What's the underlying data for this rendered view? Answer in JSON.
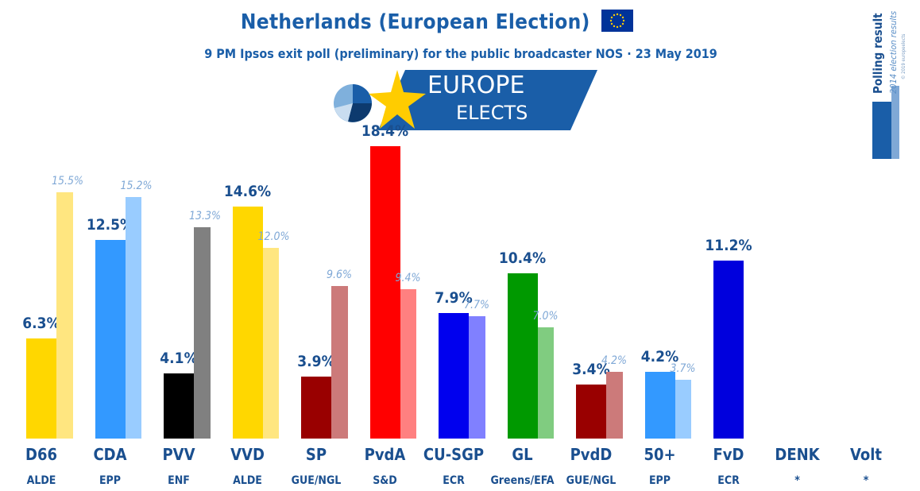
{
  "header": {
    "title": "Netherlands (European Election)",
    "subtitle": "9 PM Ipsos exit poll (preliminary) for the public broadcaster NOS · 23 May 2019"
  },
  "logo": {
    "line1": "EUROPE",
    "line2": "ELECTS"
  },
  "sidebar": {
    "label": "Polling result",
    "sublabel": "2014 election results",
    "tiny": "© 2019 europeelects"
  },
  "colors": {
    "accent": "#1a5ea8",
    "label": "#1a4f8f",
    "prev_label": "#7fa8d6"
  },
  "chart_data": {
    "type": "bar",
    "title": "Netherlands (European Election)",
    "categories": [
      "D66",
      "CDA",
      "PVV",
      "VVD",
      "SP",
      "PvdA",
      "CU-SGP",
      "GL",
      "PvdD",
      "50+",
      "FvD",
      "DENK",
      "Volt"
    ],
    "groups": [
      "ALDE",
      "EPP",
      "ENF",
      "ALDE",
      "GUE/NGL",
      "S&D",
      "ECR",
      "Greens/EFA",
      "GUE/NGL",
      "EPP",
      "ECR",
      "*",
      "*"
    ],
    "series": [
      {
        "name": "Polling result",
        "values": [
          6.3,
          12.5,
          4.1,
          14.6,
          3.9,
          18.4,
          7.9,
          10.4,
          3.4,
          4.2,
          11.2,
          null,
          null
        ],
        "labels": [
          "6.3%",
          "12.5%",
          "4.1%",
          "14.6%",
          "3.9%",
          "18.4%",
          "7.9%",
          "10.4%",
          "3.4%",
          "4.2%",
          "11.2%",
          "",
          ""
        ],
        "colors": [
          "#ffd700",
          "#3399ff",
          "#000000",
          "#ffd700",
          "#990000",
          "#ff0000",
          "#0000ee",
          "#009900",
          "#990000",
          "#3399ff",
          "#0000dd",
          "#ffffff",
          "#ffffff"
        ]
      },
      {
        "name": "2014 election result",
        "values": [
          15.5,
          15.2,
          13.3,
          12.0,
          9.6,
          9.4,
          7.7,
          7.0,
          4.2,
          3.7,
          null,
          null,
          null
        ],
        "labels": [
          "15.5%",
          "15.2%",
          "13.3%",
          "12.0%",
          "9.6%",
          "9.4%",
          "7.7%",
          "7.0%",
          "4.2%",
          "3.7%",
          "",
          "",
          ""
        ],
        "colors": [
          "#ffe680",
          "#99ccff",
          "#808080",
          "#ffe680",
          "#cc7a7a",
          "#ff8080",
          "#8080ff",
          "#80cc80",
          "#cc7a7a",
          "#99ccff",
          "#ffffff",
          "#ffffff",
          "#ffffff"
        ]
      }
    ],
    "ylim": [
      0,
      20
    ]
  }
}
